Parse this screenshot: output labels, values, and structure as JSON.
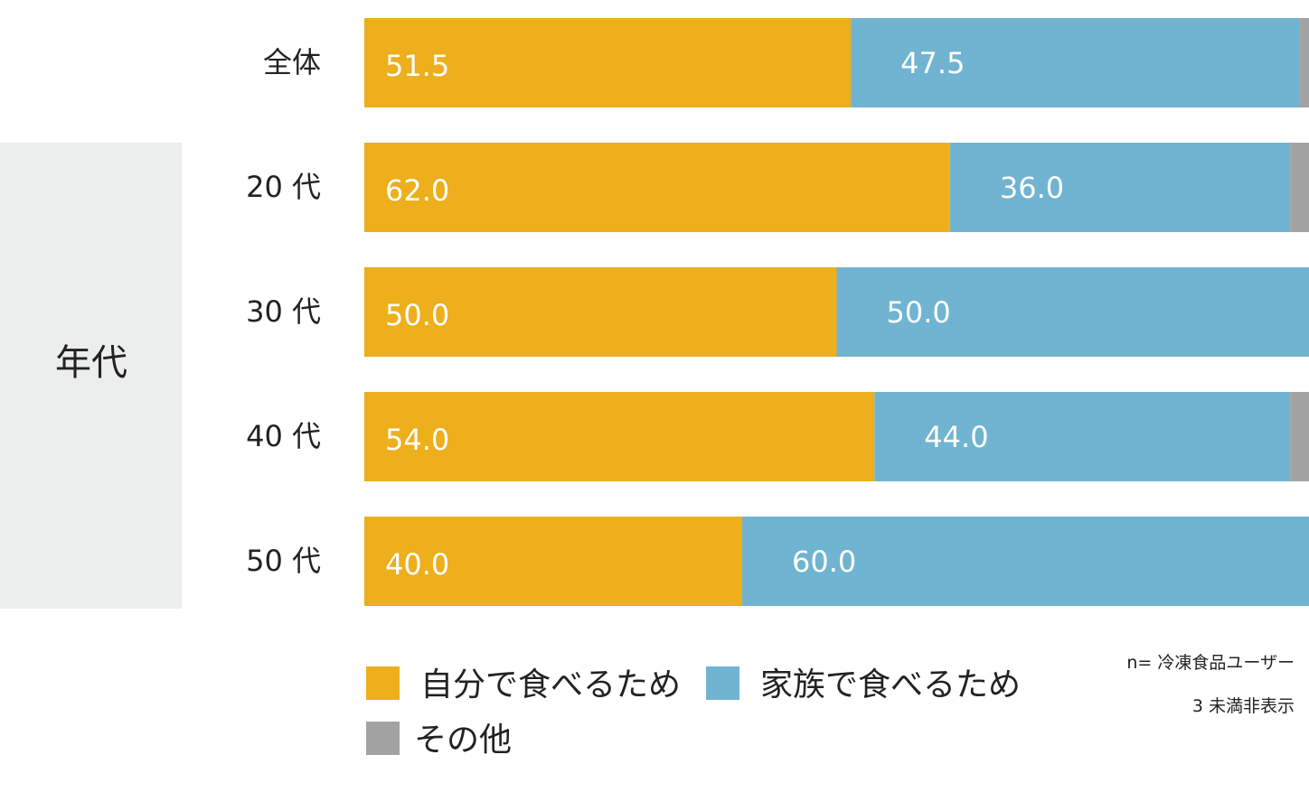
{
  "chart_data": {
    "type": "bar",
    "orientation": "horizontal",
    "stacked": true,
    "group_label": "年代",
    "categories": [
      "全体",
      "20 代",
      "30 代",
      "40 代",
      "50 代"
    ],
    "series": [
      {
        "name": "自分で食べるため",
        "color": "#edaf1c",
        "values": [
          51.5,
          62.0,
          50.0,
          54.0,
          40.0
        ]
      },
      {
        "name": "家族で食べるため",
        "color": "#70b4d2",
        "values": [
          47.5,
          36.0,
          50.0,
          44.0,
          60.0
        ]
      },
      {
        "name": "その他",
        "color": "#a3a3a3",
        "values": [
          1.0,
          2.0,
          0,
          2.0,
          0
        ]
      }
    ],
    "xlim": [
      0,
      100
    ],
    "grid": false,
    "legend": "bottom",
    "notes": [
      "n= 冷凍食品ユーザー",
      "3 未満非表示"
    ]
  }
}
